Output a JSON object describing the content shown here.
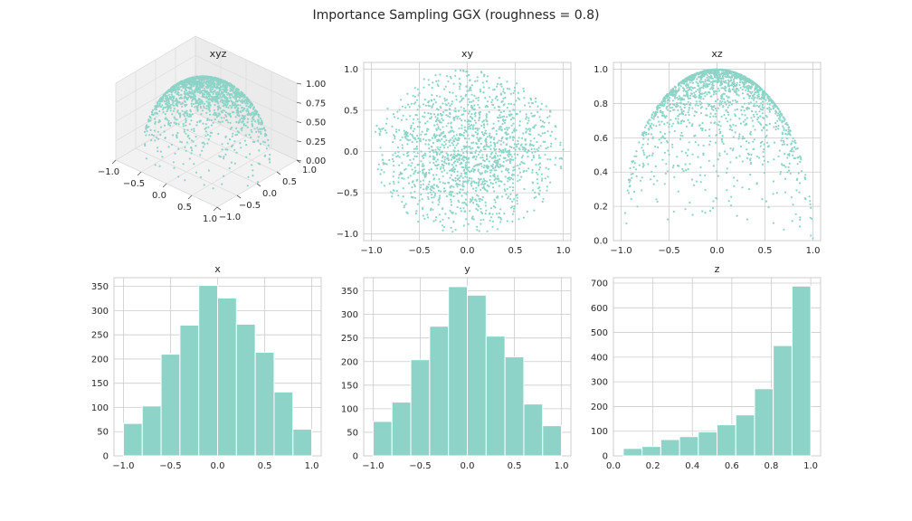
{
  "figure": {
    "title": "Importance Sampling GGX (roughness = 0.8)",
    "point_color": "#8dd3c7",
    "bar_color": "#8dd3c7",
    "grid_color": "#cccccc",
    "pane_color": "#f2f2f2"
  },
  "chart_data": [
    {
      "type": "scatter3d",
      "title": "xyz",
      "xlim": [
        -1.0,
        1.0
      ],
      "ylim": [
        -1.0,
        1.0
      ],
      "zlim": [
        0.0,
        1.0
      ],
      "xticks": [
        "−1.0",
        "−0.5",
        "0.0",
        "0.5",
        "1.0"
      ],
      "yticks": [
        "−1.0",
        "−0.5",
        "0.0",
        "0.5",
        "1.0"
      ],
      "zticks": [
        "0.00",
        "0.25",
        "0.50",
        "0.75",
        "1.00"
      ],
      "description_of_points": "samples on upper unit hemisphere"
    },
    {
      "type": "scatter",
      "title": "xy",
      "xlim": [
        -1.08,
        1.08
      ],
      "ylim": [
        -1.08,
        1.08
      ],
      "xticks": [
        "−1.0",
        "−0.5",
        "0.0",
        "0.5",
        "1.0"
      ],
      "yticks": [
        "−1.0",
        "−0.5",
        "0.0",
        "0.5",
        "1.0"
      ],
      "grid": true
    },
    {
      "type": "scatter",
      "title": "xz",
      "xlim": [
        -1.08,
        1.08
      ],
      "ylim": [
        0.0,
        1.04
      ],
      "xticks": [
        "−1.0",
        "−0.5",
        "0.0",
        "0.5",
        "1.0"
      ],
      "yticks": [
        "0.0",
        "0.2",
        "0.4",
        "0.6",
        "0.8",
        "1.0"
      ],
      "grid": true
    },
    {
      "type": "bar",
      "title": "x",
      "bin_edges": [
        -1.0,
        -0.8,
        -0.6,
        -0.4,
        -0.2,
        0.0,
        0.2,
        0.4,
        0.6,
        0.8,
        1.0
      ],
      "values": [
        67,
        103,
        210,
        270,
        352,
        326,
        272,
        214,
        132,
        55
      ],
      "xlim": [
        -1.1,
        1.1
      ],
      "ylim": [
        0,
        368
      ],
      "xticks": [
        "−1.0",
        "−0.5",
        "0.0",
        "0.5",
        "1.0"
      ],
      "yticks": [
        "0",
        "50",
        "100",
        "150",
        "200",
        "250",
        "300",
        "350"
      ]
    },
    {
      "type": "bar",
      "title": "y",
      "bin_edges": [
        -1.0,
        -0.8,
        -0.6,
        -0.4,
        -0.2,
        0.0,
        0.2,
        0.4,
        0.6,
        0.8,
        1.0
      ],
      "values": [
        73,
        114,
        204,
        275,
        359,
        341,
        254,
        210,
        110,
        64
      ],
      "xlim": [
        -1.1,
        1.1
      ],
      "ylim": [
        0,
        378
      ],
      "xticks": [
        "−1.0",
        "−0.5",
        "0.0",
        "0.5",
        "1.0"
      ],
      "yticks": [
        "0",
        "50",
        "100",
        "150",
        "200",
        "250",
        "300",
        "350"
      ]
    },
    {
      "type": "bar",
      "title": "z",
      "bin_edges": [
        0.05,
        0.145,
        0.24,
        0.335,
        0.43,
        0.525,
        0.62,
        0.715,
        0.81,
        0.905,
        1.0
      ],
      "values": [
        30,
        38,
        66,
        78,
        97,
        126,
        166,
        272,
        447,
        688
      ],
      "xlim": [
        0.0,
        1.05
      ],
      "ylim": [
        0,
        722
      ],
      "xticks": [
        "0.0",
        "0.2",
        "0.4",
        "0.6",
        "0.8",
        "1.0"
      ],
      "yticks": [
        "0",
        "100",
        "200",
        "300",
        "400",
        "500",
        "600",
        "700"
      ]
    }
  ]
}
